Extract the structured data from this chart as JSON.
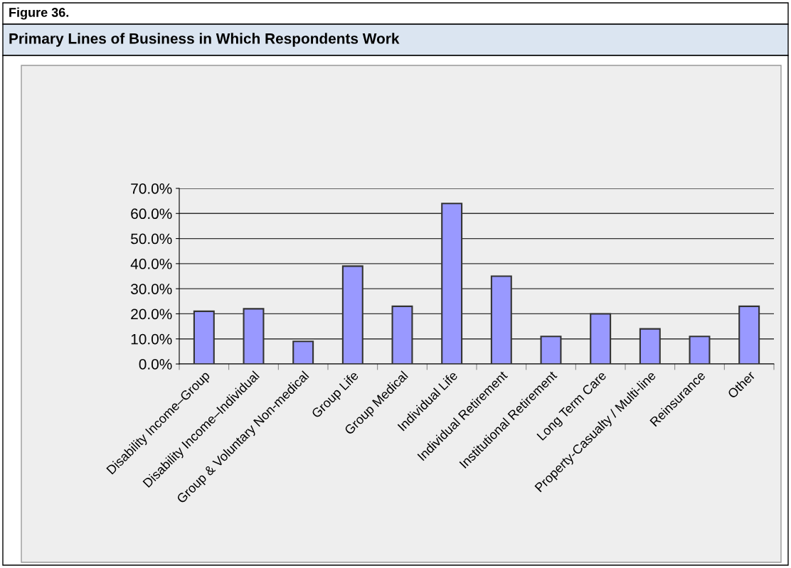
{
  "chart_data": {
    "type": "bar",
    "title": "Primary Lines of Business in Which Respondents Work",
    "annotations": [
      "Figure 36."
    ],
    "categories": [
      "Disability Income–Group",
      "Disability Income–Individual",
      "Group & Voluntary Non-medical",
      "Group Life",
      "Group Medical",
      "Individual Life",
      "Individual Retirement",
      "Institutional Retirement",
      "Long Term Care",
      "Property-Casualty / Multi-line",
      "Reinsurance",
      "Other"
    ],
    "values": [
      21,
      22,
      9,
      39,
      23,
      64,
      35,
      11,
      20,
      14,
      11,
      23
    ],
    "color": "#9999ff",
    "ylim": [
      0,
      70
    ],
    "yticks": [
      {
        "value": 0,
        "label": "0.0%"
      },
      {
        "value": 10,
        "label": "10.0%"
      },
      {
        "value": 20,
        "label": "20.0%"
      },
      {
        "value": 30,
        "label": "30.0%"
      },
      {
        "value": 40,
        "label": "40.0%"
      },
      {
        "value": 50,
        "label": "50.0%"
      },
      {
        "value": 60,
        "label": "60.0%"
      },
      {
        "value": 70,
        "label": "70.0%"
      }
    ],
    "grid": "y",
    "legend": false
  }
}
